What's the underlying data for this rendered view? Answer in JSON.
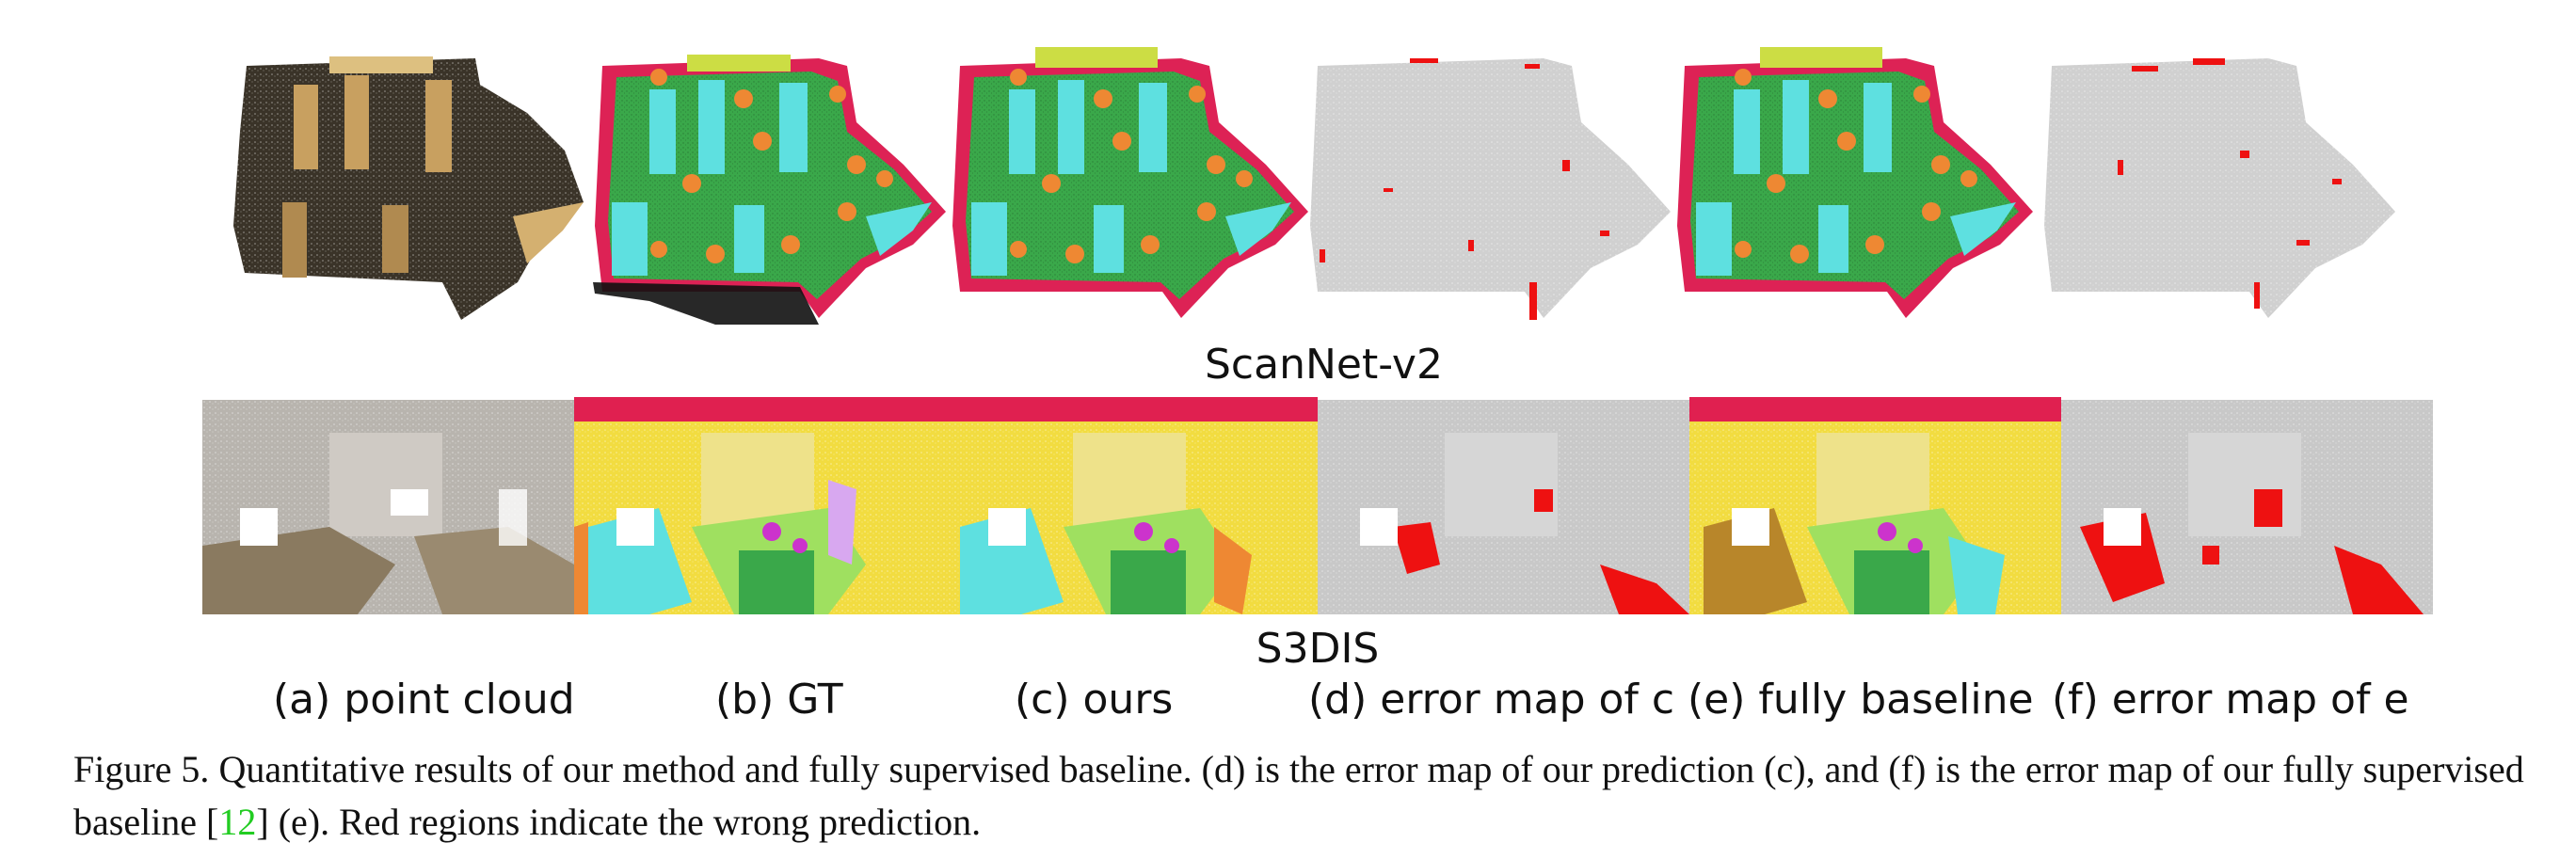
{
  "figure": {
    "datasets": [
      {
        "name": "ScanNet-v2"
      },
      {
        "name": "S3DIS"
      }
    ],
    "column_labels": [
      "(a) point cloud",
      "(b) GT",
      "(c) ours",
      "(d) error map of c",
      "(e) fully baseline",
      "(f) error map of e"
    ],
    "caption": {
      "label": "Figure 5.",
      "text_part1": " Quantitative results of our method and fully supervised baseline. (d) is the error map of our prediction (c), and (f) is the error map of our fully supervised baseline [",
      "ref": "12",
      "text_part2": "] (e). Red regions indicate the wrong prediction."
    },
    "colors": {
      "floor": "#3aa84a",
      "table": "#5ee0e0",
      "chair": "#ee8833",
      "wall": "#dd2255",
      "error": "#ee1111",
      "gray": "#c8c8c8",
      "ceiling": "#e02050",
      "wall_s3dis": "#f2dc40"
    }
  }
}
